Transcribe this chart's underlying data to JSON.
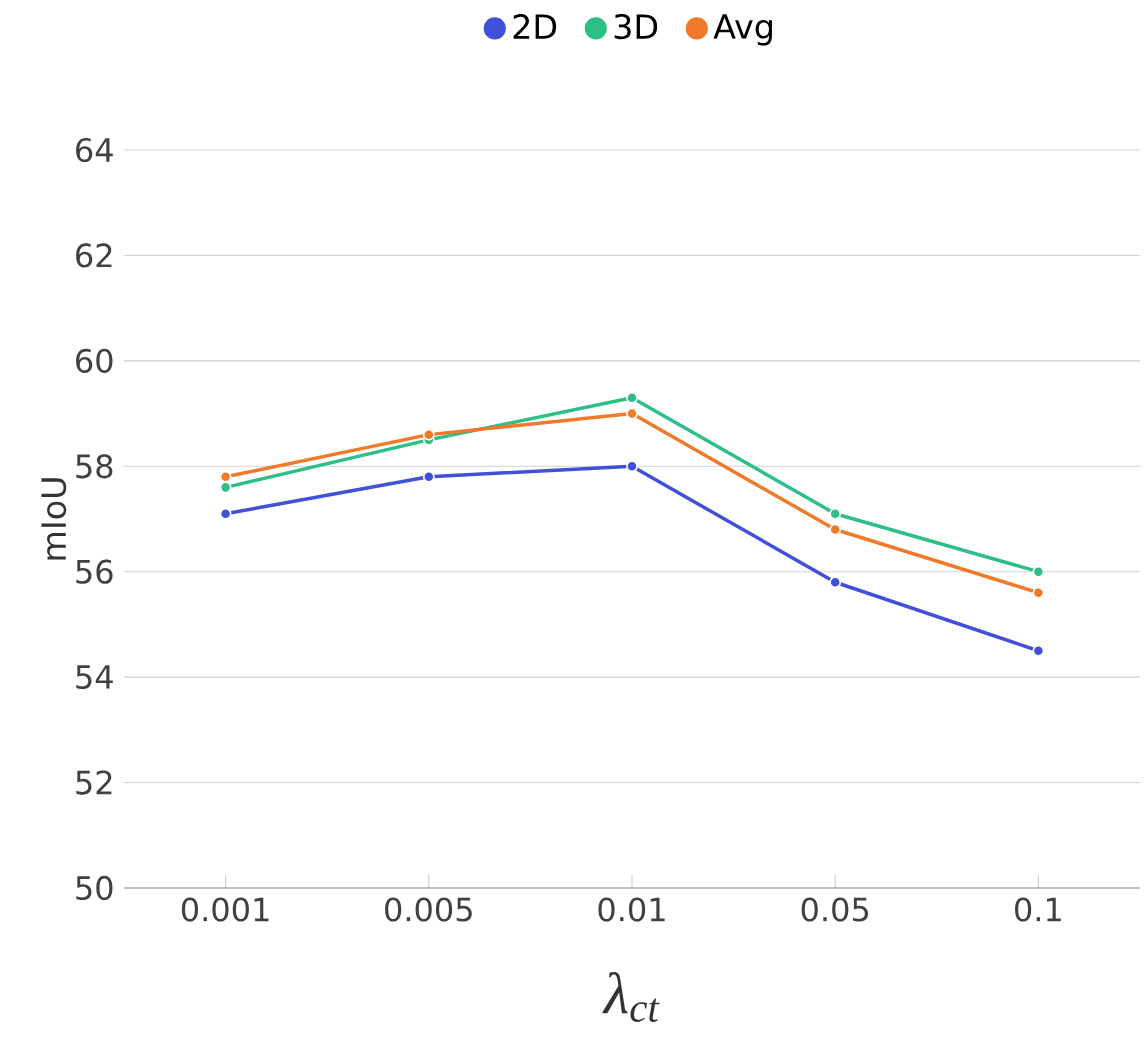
{
  "chart_data": {
    "type": "line",
    "xlabel": "λ$_{ct}$",
    "ylabel": "mIoU",
    "categories": [
      "0.001",
      "0.005",
      "0.01",
      "0.05",
      "0.1"
    ],
    "series": [
      {
        "name": "2D",
        "color": "#4050d8",
        "values": [
          57.1,
          57.8,
          58.0,
          55.8,
          54.5
        ]
      },
      {
        "name": "3D",
        "color": "#2dbf86",
        "values": [
          57.6,
          58.5,
          59.3,
          57.1,
          56.0
        ]
      },
      {
        "name": "Avg",
        "color": "#f07a2a",
        "values": [
          57.8,
          58.6,
          59.0,
          56.8,
          55.6
        ]
      }
    ],
    "ylim": [
      50,
      64
    ],
    "yticks": [
      50,
      52,
      54,
      56,
      58,
      60,
      62,
      64
    ],
    "grid": "y",
    "legend": "top",
    "marker": "circle",
    "line_style": "solid"
  }
}
